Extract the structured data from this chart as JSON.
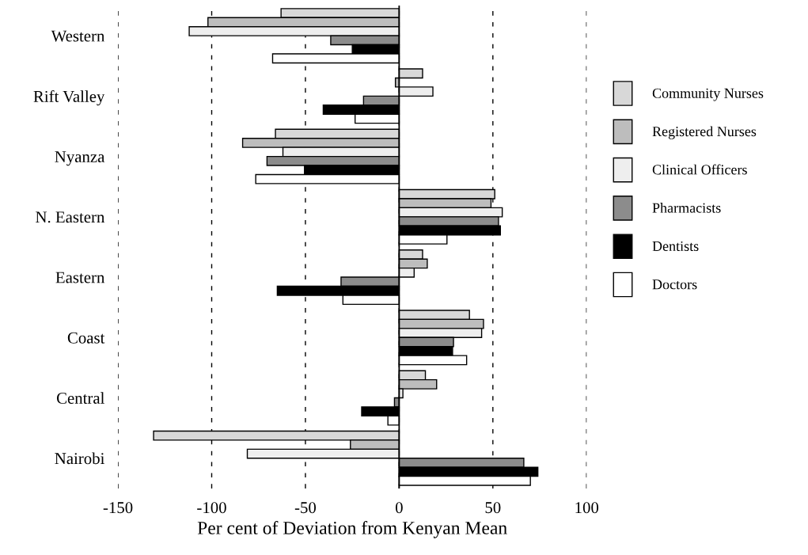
{
  "chart_data": {
    "type": "bar",
    "orientation": "horizontal",
    "xlabel": "Per cent of Deviation from Kenyan Mean",
    "categories": [
      "Western",
      "Rift Valley",
      "Nyanza",
      "N. Eastern",
      "Eastern",
      "Coast",
      "Central",
      "Nairobi"
    ],
    "series": [
      {
        "name": "Community Nurses",
        "color": "#d8d8d8",
        "values": [
          -63,
          12.5,
          -66,
          51,
          12.5,
          37.5,
          14,
          -131
        ]
      },
      {
        "name": "Registered Nurses",
        "color": "#bdbdbd",
        "values": [
          -102,
          -2,
          -83.5,
          49,
          15,
          45,
          20,
          -26
        ]
      },
      {
        "name": "Clinical Officers",
        "color": "#eeeeee",
        "values": [
          -112,
          18,
          -62,
          55,
          8,
          44,
          2,
          -81
        ]
      },
      {
        "name": "Pharmacists",
        "color": "#8c8c8c",
        "values": [
          -36.5,
          -19,
          -70.5,
          53,
          -31,
          29,
          -2.5,
          66.5
        ]
      },
      {
        "name": "Dentists",
        "color": "#000000",
        "values": [
          -25,
          -40.5,
          -50.5,
          54,
          -65,
          28.5,
          -20,
          74
        ]
      },
      {
        "name": "Doctors",
        "color": "#ffffff",
        "values": [
          -67.5,
          -23.5,
          -76.5,
          25.5,
          -30,
          36,
          -6,
          70
        ]
      }
    ],
    "xlim": [
      -150,
      100
    ],
    "xticks": [
      -150,
      -100,
      -50,
      0,
      50,
      100
    ],
    "grid": "x",
    "legend": "right",
    "ref_lines": [
      {
        "axis": "x",
        "value": 0,
        "color": "#000000",
        "line_style": "solid"
      }
    ]
  }
}
